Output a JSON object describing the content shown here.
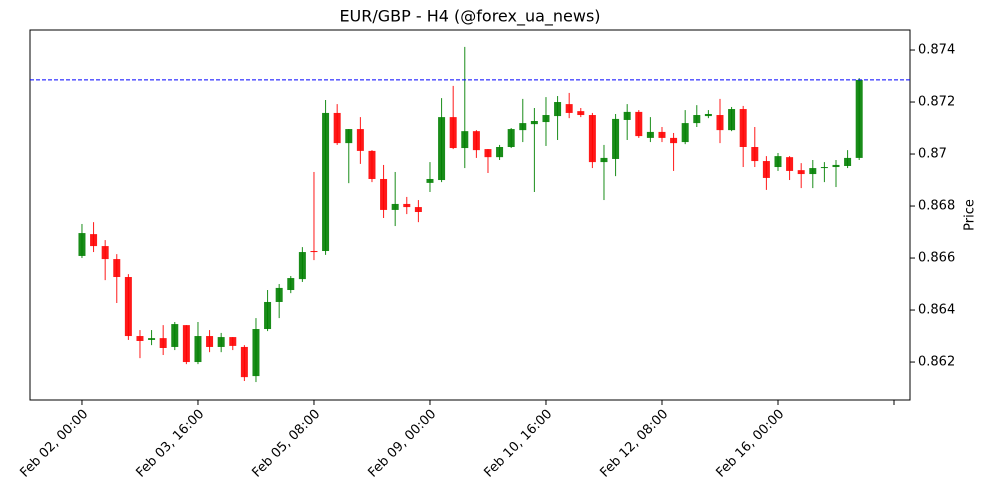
{
  "chart_data": {
    "type": "candlestick",
    "title": "EUR/GBP - H4 (@forex_ua_news)",
    "y_label": "Price",
    "open": [
      0.86608,
      0.86692,
      0.86646,
      0.86596,
      0.86527,
      0.863,
      0.86285,
      0.86292,
      0.86258,
      0.86342,
      0.862,
      0.863,
      0.86258,
      0.86296,
      0.86258,
      0.86146,
      0.86327,
      0.86431,
      0.86477,
      0.86519,
      0.86627,
      0.86627,
      0.87158,
      0.87042,
      0.87096,
      0.87012,
      0.86904,
      0.86785,
      0.86808,
      0.86796,
      0.86889,
      0.869,
      0.87142,
      0.87023,
      0.87088,
      0.87019,
      0.86988,
      0.87027,
      0.87092,
      0.87115,
      0.87123,
      0.87146,
      0.87192,
      0.87165,
      0.8715,
      0.86969,
      0.86981,
      0.87131,
      0.87162,
      0.87062,
      0.87085,
      0.87062,
      0.87046,
      0.87119,
      0.87146,
      0.8715,
      0.87092,
      0.87173,
      0.87027,
      0.86973,
      0.8695,
      0.86988,
      0.86938,
      0.86923,
      0.86946,
      0.8695,
      0.86954,
      0.86985
    ],
    "high": [
      0.86731,
      0.86738,
      0.86669,
      0.86615,
      0.86538,
      0.86323,
      0.86323,
      0.86342,
      0.86354,
      0.86342,
      0.86354,
      0.86323,
      0.86312,
      0.86296,
      0.86265,
      0.86369,
      0.86477,
      0.865,
      0.86531,
      0.86642,
      0.86931,
      0.87208,
      0.87192,
      0.87096,
      0.87142,
      0.87015,
      0.86958,
      0.86931,
      0.86835,
      0.86823,
      0.86969,
      0.87215,
      0.87262,
      0.87412,
      0.87092,
      0.87019,
      0.87035,
      0.871,
      0.87212,
      0.87177,
      0.87219,
      0.87223,
      0.87235,
      0.87177,
      0.87158,
      0.87035,
      0.87154,
      0.87192,
      0.87169,
      0.87142,
      0.87104,
      0.87081,
      0.87169,
      0.87188,
      0.87169,
      0.87212,
      0.87181,
      0.87185,
      0.87104,
      0.86992,
      0.87004,
      0.86992,
      0.86965,
      0.86977,
      0.86969,
      0.86977,
      0.87015,
      0.87292
    ],
    "low": [
      0.866,
      0.86623,
      0.86515,
      0.86427,
      0.86285,
      0.86215,
      0.86265,
      0.86227,
      0.86246,
      0.86192,
      0.86192,
      0.86238,
      0.86238,
      0.86246,
      0.86127,
      0.86123,
      0.86319,
      0.86369,
      0.86465,
      0.86508,
      0.86592,
      0.86612,
      0.87035,
      0.86888,
      0.86962,
      0.86892,
      0.86754,
      0.86723,
      0.86769,
      0.86738,
      0.86854,
      0.86892,
      0.87019,
      0.86946,
      0.86985,
      0.86927,
      0.86977,
      0.87023,
      0.87046,
      0.86854,
      0.87031,
      0.87054,
      0.87138,
      0.87142,
      0.86946,
      0.86823,
      0.86915,
      0.87054,
      0.87062,
      0.87046,
      0.87046,
      0.86935,
      0.87038,
      0.87104,
      0.87138,
      0.87042,
      0.87088,
      0.8695,
      0.8695,
      0.86862,
      0.86935,
      0.869,
      0.86869,
      0.86869,
      0.86892,
      0.86873,
      0.86946,
      0.86977
    ],
    "close": [
      0.86696,
      0.86646,
      0.86596,
      0.86527,
      0.863,
      0.86281,
      0.86292,
      0.86254,
      0.86346,
      0.862,
      0.863,
      0.86258,
      0.86296,
      0.86262,
      0.86142,
      0.86327,
      0.86431,
      0.86485,
      0.86523,
      0.86623,
      0.86623,
      0.87158,
      0.87042,
      0.87096,
      0.87012,
      0.86904,
      0.86785,
      0.86808,
      0.86796,
      0.86777,
      0.86904,
      0.87142,
      0.87023,
      0.87088,
      0.87015,
      0.86988,
      0.87027,
      0.87096,
      0.87119,
      0.87127,
      0.8715,
      0.872,
      0.87158,
      0.8715,
      0.86969,
      0.86985,
      0.87135,
      0.87162,
      0.87069,
      0.87085,
      0.87062,
      0.87042,
      0.87119,
      0.8715,
      0.87154,
      0.87092,
      0.87173,
      0.87027,
      0.86973,
      0.86908,
      0.86992,
      0.86935,
      0.86923,
      0.86946,
      0.8695,
      0.86958,
      0.86985,
      0.87285
    ],
    "up_color": "green",
    "down_color": "red",
    "hline": 0.87285,
    "hline_color": "blue",
    "xlim": [
      -4.48,
      71.38
    ],
    "xticks": [
      {
        "value": 0,
        "label": "Feb 02, 00:00"
      },
      {
        "value": 10,
        "label": "Feb 03, 16:00"
      },
      {
        "value": 20,
        "label": "Feb 05, 08:00"
      },
      {
        "value": 30,
        "label": "Feb 09, 00:00"
      },
      {
        "value": 40,
        "label": "Feb 10, 16:00"
      },
      {
        "value": 50,
        "label": "Feb 12, 08:00"
      },
      {
        "value": 60,
        "label": "Feb 16, 00:00"
      },
      70
    ],
    "ylim": [
      0.86054,
      0.87477
    ],
    "yticks": [
      0.862,
      0.864,
      0.866,
      0.868,
      0.87,
      0.872,
      0.874
    ],
    "y_axis_side": "right"
  }
}
